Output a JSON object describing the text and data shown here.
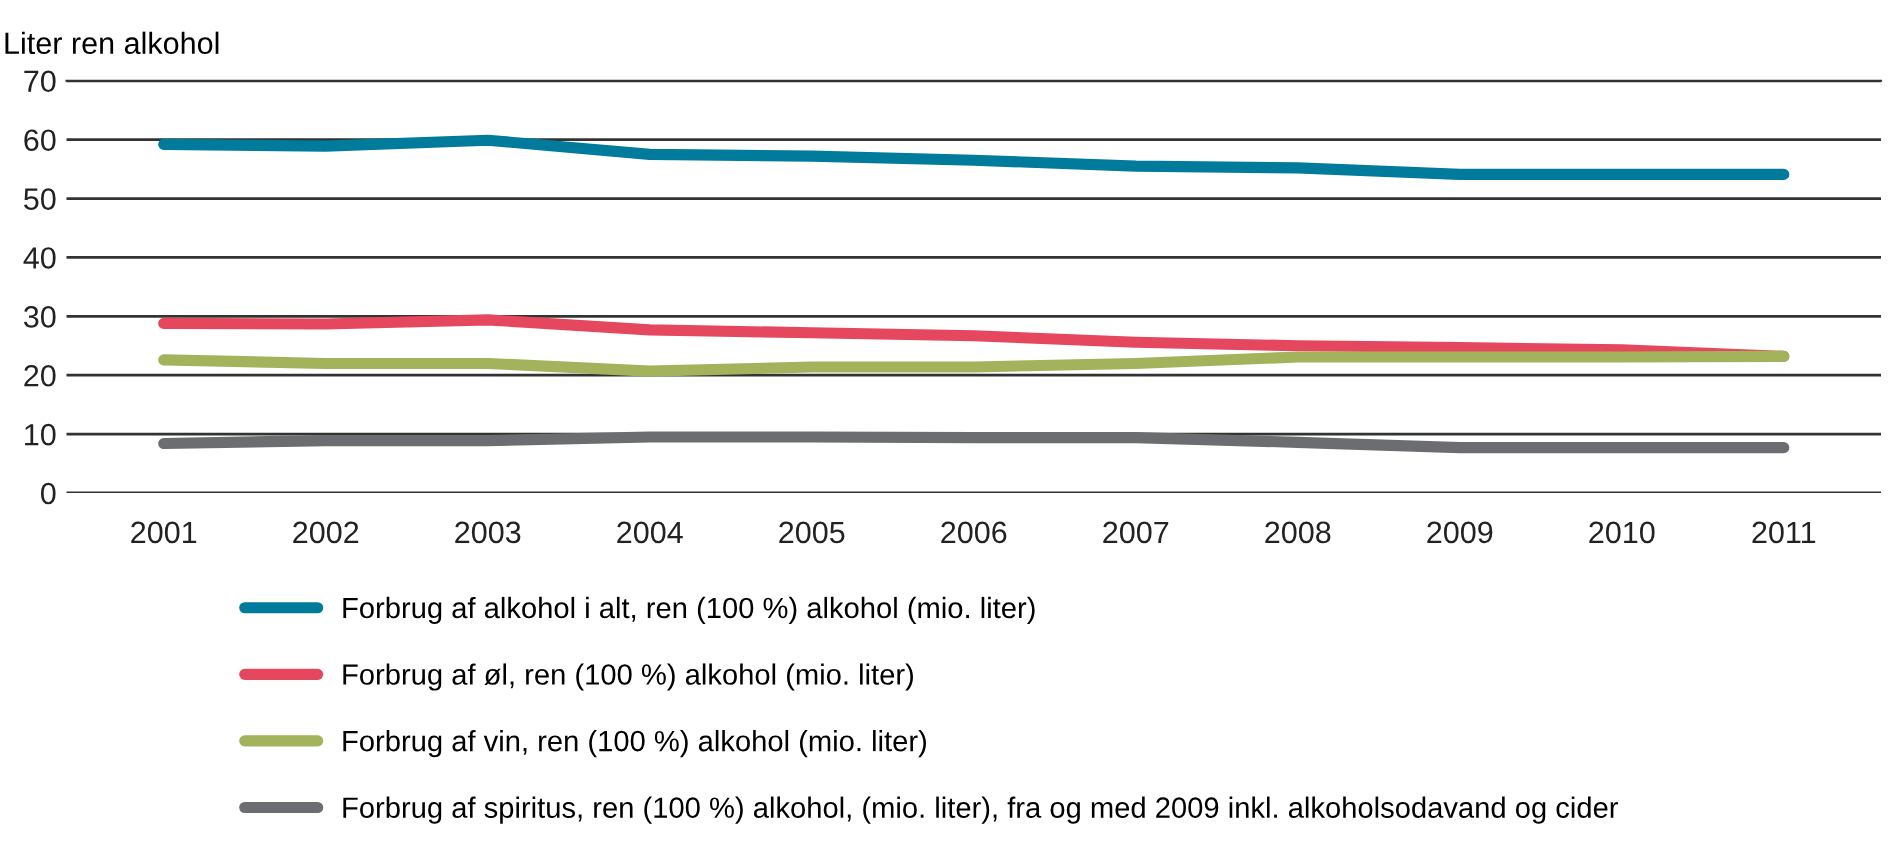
{
  "chart_data": {
    "type": "line",
    "ylabel": "Liter ren alkohol",
    "categories": [
      "2001",
      "2002",
      "2003",
      "2004",
      "2005",
      "2006",
      "2007",
      "2008",
      "2009",
      "2010",
      "2011"
    ],
    "series": [
      {
        "name": "Forbrug af alkohol i alt, ren (100 %) alkohol (mio. liter)",
        "color": "#007b9b",
        "values": [
          59.2,
          58.9,
          59.9,
          57.5,
          57.2,
          56.5,
          55.5,
          55.2,
          54.1,
          54.1,
          54.1
        ]
      },
      {
        "name": "Forbrug af øl, ren (100 %) alkohol (mio. liter)",
        "color": "#e4475e",
        "values": [
          28.8,
          28.7,
          29.4,
          27.7,
          27.2,
          26.7,
          25.6,
          25.0,
          24.7,
          24.3,
          23.2
        ]
      },
      {
        "name": "Forbrug af vin, ren (100 %) alkohol (mio. liter)",
        "color": "#a3b35c",
        "values": [
          22.6,
          22.0,
          22.0,
          20.7,
          21.4,
          21.4,
          22.0,
          23.1,
          23.1,
          23.1,
          23.2
        ]
      },
      {
        "name": "Forbrug af spiritus, ren (100 %) alkohol, (mio. liter), fra og med 2009 inkl. alkoholsodavand og cider",
        "color": "#6b6d70",
        "values": [
          8.4,
          8.9,
          8.9,
          9.5,
          9.5,
          9.4,
          9.4,
          8.6,
          7.7,
          7.7,
          7.7
        ]
      }
    ],
    "ylim": [
      0,
      70
    ],
    "yticks": [
      0,
      10,
      20,
      30,
      40,
      50,
      60,
      70
    ],
    "grid": "y",
    "legend": "bottom",
    "marker": "none",
    "line_style": "solid"
  }
}
